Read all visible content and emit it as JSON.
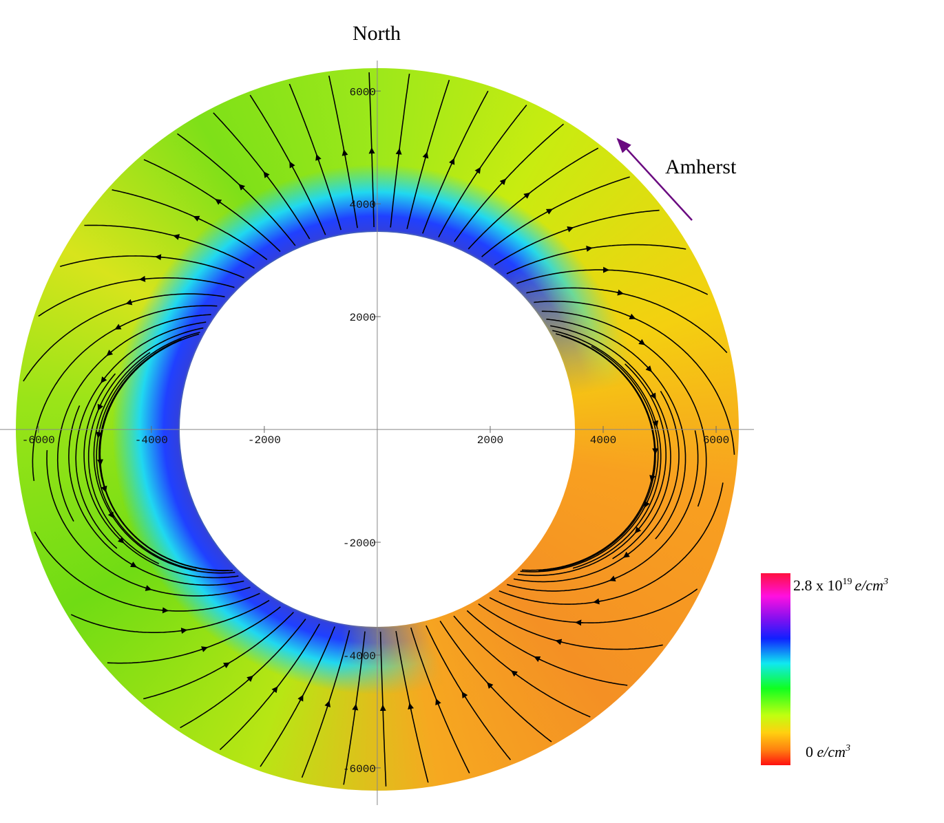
{
  "chart_data": {
    "type": "streamplot",
    "top_label": "North",
    "annotation": "Amherst",
    "xlim": [
      -6680,
      6670
    ],
    "ylim": [
      -6660,
      6540
    ],
    "xticks": [
      -6000,
      -4000,
      -2000,
      2000,
      4000,
      6000
    ],
    "yticks": [
      6000,
      4000,
      2000,
      -2000,
      -4000,
      -6000
    ],
    "colorbar": {
      "max_label": [
        "2.8 x 10",
        "19",
        "e/cm",
        "3"
      ],
      "min_label": [
        "0 ",
        "e/cm",
        "3"
      ]
    }
  }
}
